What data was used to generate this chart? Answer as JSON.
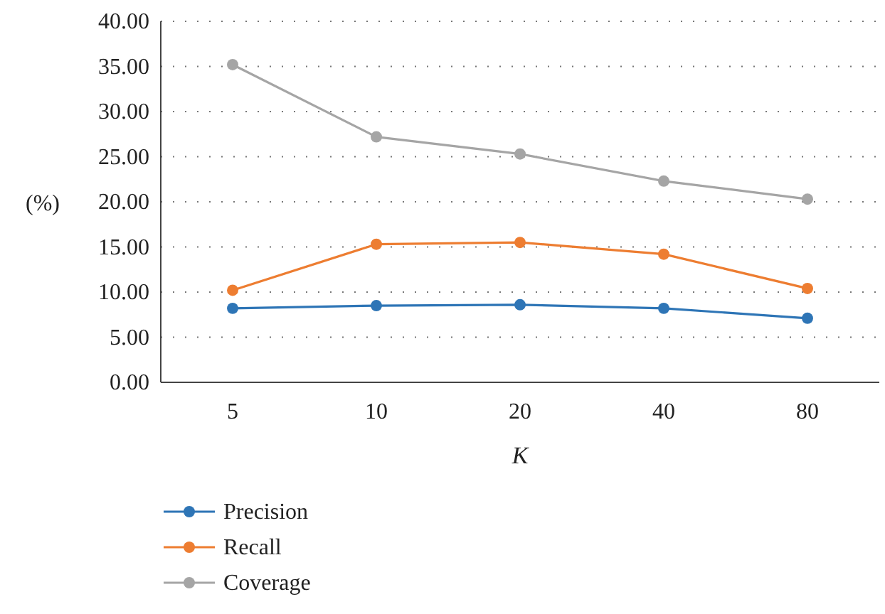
{
  "chart_data": {
    "type": "line",
    "xlabel": "K",
    "ylabel": "(%)",
    "categories": [
      "5",
      "10",
      "20",
      "40",
      "80"
    ],
    "ylim": [
      0,
      40
    ],
    "yticks": [
      {
        "value": 0,
        "label": "0.00"
      },
      {
        "value": 5,
        "label": "5.00"
      },
      {
        "value": 10,
        "label": "10.00"
      },
      {
        "value": 15,
        "label": "15.00"
      },
      {
        "value": 20,
        "label": "20.00"
      },
      {
        "value": 25,
        "label": "25.00"
      },
      {
        "value": 30,
        "label": "30.00"
      },
      {
        "value": 35,
        "label": "35.00"
      },
      {
        "value": 40,
        "label": "40.00"
      }
    ],
    "grid": "y",
    "legend": "bottom",
    "marker": "circle",
    "series": [
      {
        "name": "Precision",
        "color": "#2e75b6",
        "values": [
          8.2,
          8.5,
          8.6,
          8.2,
          7.1
        ]
      },
      {
        "name": "Recall",
        "color": "#ed7d31",
        "values": [
          10.2,
          15.3,
          15.5,
          14.2,
          10.4
        ]
      },
      {
        "name": "Coverage",
        "color": "#a5a5a5",
        "values": [
          35.2,
          27.2,
          25.3,
          22.3,
          20.3
        ]
      }
    ]
  }
}
